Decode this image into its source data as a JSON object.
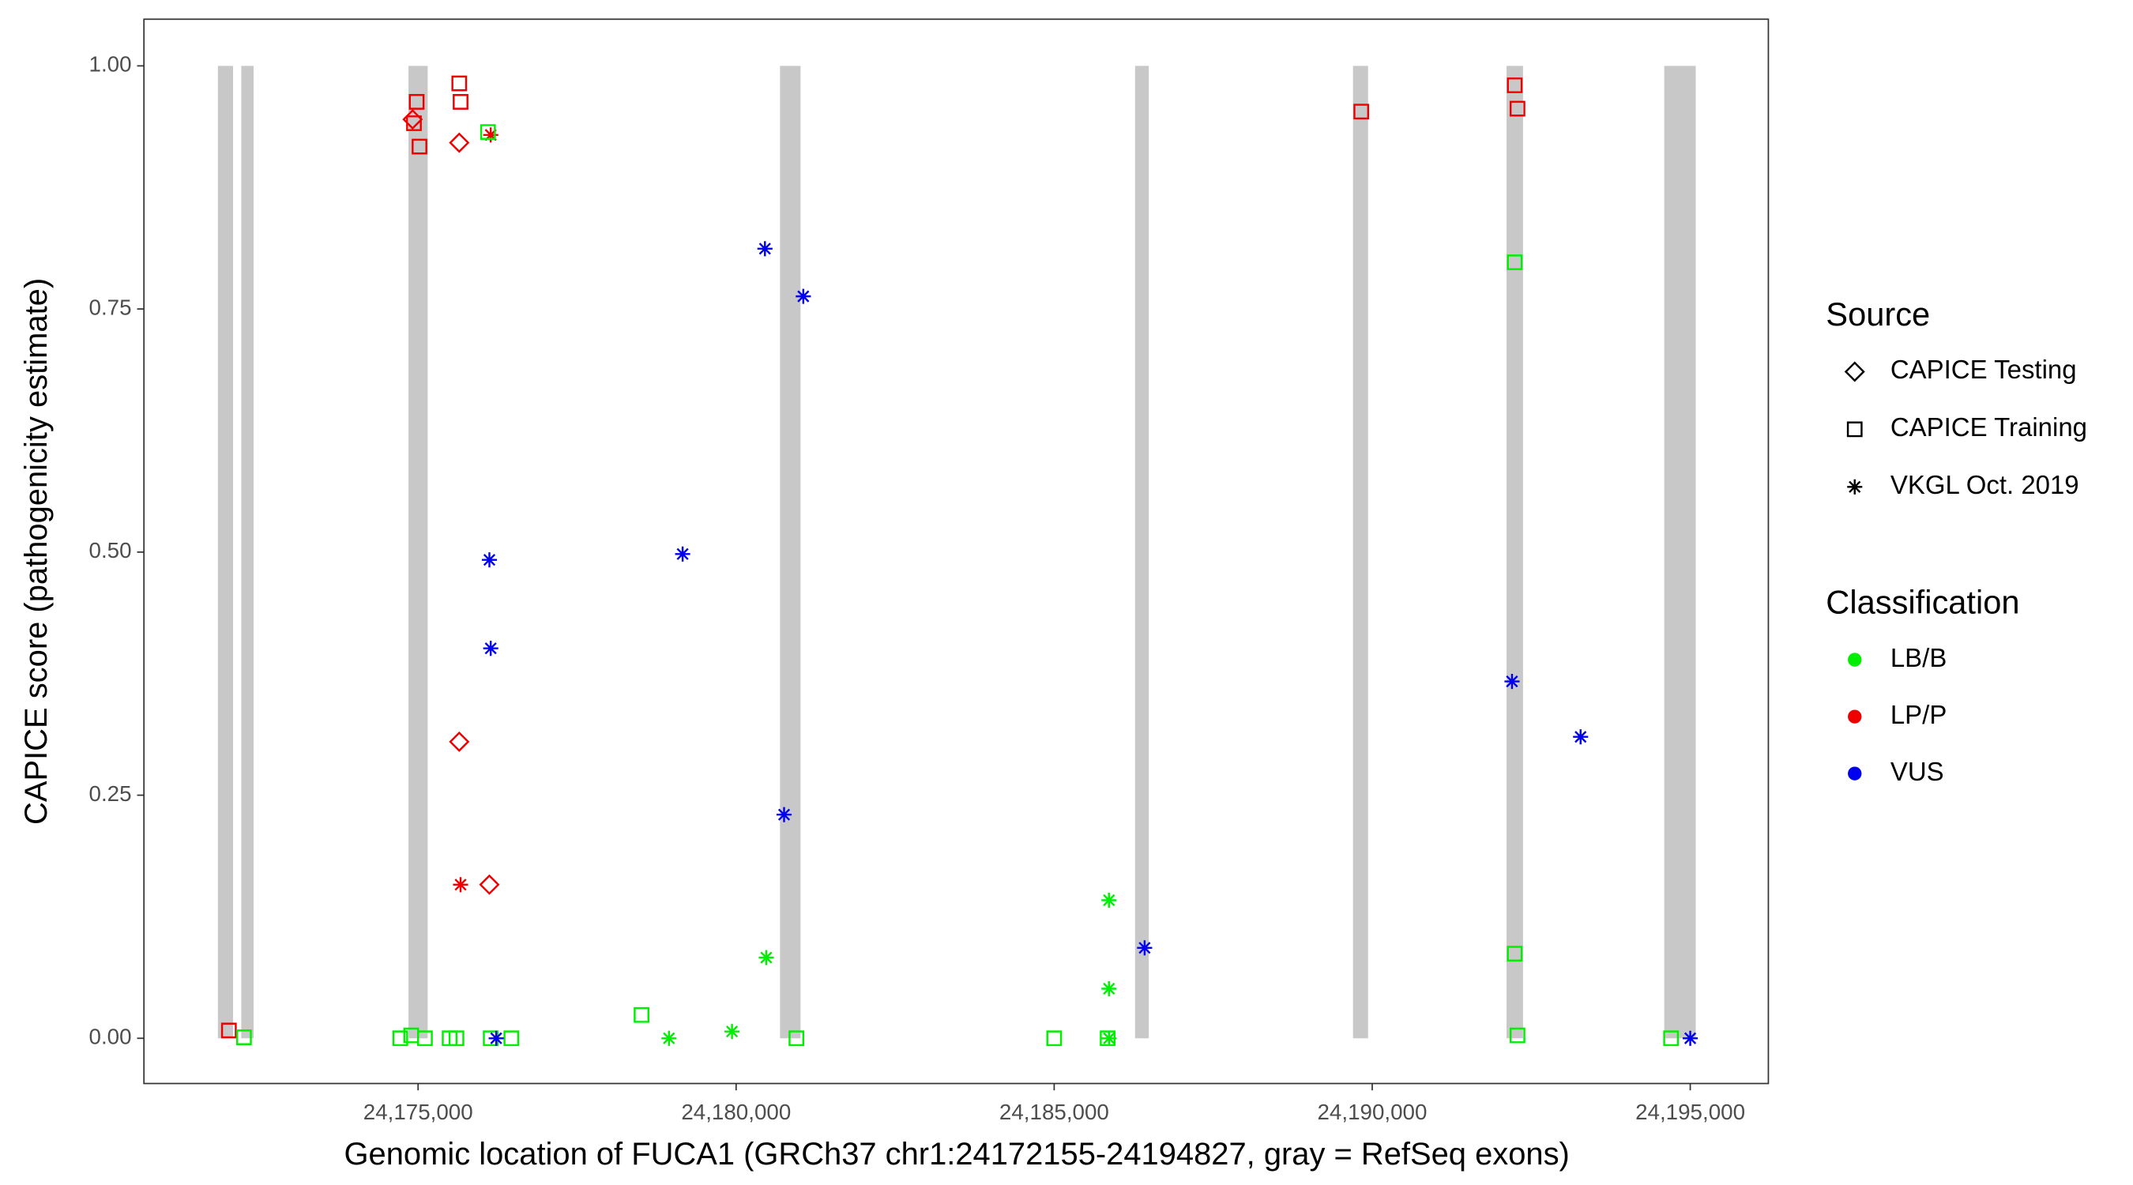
{
  "chart_data": {
    "type": "scatter",
    "xlabel": "Genomic location of FUCA1 (GRCh37 chr1:24172155-24194827, gray = RefSeq exons)",
    "ylabel": "CAPICE score (pathogenicity estimate)",
    "xlim": [
      24170690,
      24196228
    ],
    "ylim": [
      -0.0465,
      1.048
    ],
    "xticks": [
      {
        "value": 24175000,
        "label": "24,175,000"
      },
      {
        "value": 24180000,
        "label": "24,180,000"
      },
      {
        "value": 24185000,
        "label": "24,185,000"
      },
      {
        "value": 24190000,
        "label": "24,190,000"
      },
      {
        "value": 24195000,
        "label": "24,195,000"
      }
    ],
    "yticks": [
      {
        "value": 0,
        "label": "0.00"
      },
      {
        "value": 0.25,
        "label": "0.25"
      },
      {
        "value": 0.5,
        "label": "0.50"
      },
      {
        "value": 0.75,
        "label": "0.75"
      },
      {
        "value": 1,
        "label": "1.00"
      }
    ],
    "exon_color": "#c8c8c8",
    "exons": [
      [
        24171853,
        24172091
      ],
      [
        24172220,
        24172414
      ],
      [
        24174849,
        24175151
      ],
      [
        24180690,
        24181013
      ],
      [
        24186272,
        24186487
      ],
      [
        24189698,
        24189935
      ],
      [
        24192112,
        24192371
      ],
      [
        24194591,
        24195086
      ]
    ],
    "exon_range": [
      0,
      1
    ],
    "source_legend": {
      "title": "Source",
      "items": [
        {
          "name": "CAPICE Testing",
          "shape": "diamond"
        },
        {
          "name": "CAPICE Training",
          "shape": "square"
        },
        {
          "name": "VKGL Oct. 2019",
          "shape": "asterisk"
        }
      ]
    },
    "class_legend": {
      "title": "Classification",
      "items": [
        {
          "name": "LB/B",
          "color": "#00ee00"
        },
        {
          "name": "LP/P",
          "color": "#ee0000"
        },
        {
          "name": "VUS",
          "color": "#0000ee"
        }
      ]
    },
    "series": [
      {
        "source": "CAPICE Training",
        "classification": "LP/P",
        "x": [
          24172026,
          24174978,
          24174935,
          24175022,
          24175647,
          24175668,
          24189828,
          24192241,
          24192284
        ],
        "values": [
          0.008,
          0.963,
          0.941,
          0.917,
          0.982,
          0.963,
          0.953,
          0.98,
          0.956
        ]
      },
      {
        "source": "CAPICE Testing",
        "classification": "LP/P",
        "x": [
          24174914,
          24175647,
          24175647,
          24176121
        ],
        "values": [
          0.945,
          0.921,
          0.305,
          0.158
        ]
      },
      {
        "source": "VKGL Oct. 2019",
        "classification": "LP/P",
        "x": [
          24176142,
          24175668
        ],
        "values": [
          0.929,
          0.158
        ]
      },
      {
        "source": "CAPICE Training",
        "classification": "LB/B",
        "x": [
          24172263,
          24174720,
          24174892,
          24175108,
          24175496,
          24175603,
          24176099,
          24176142,
          24176466,
          24178513,
          24180948,
          24185000,
          24185841,
          24192241,
          24192241,
          24192284,
          24194698
        ],
        "values": [
          0.001,
          0,
          0.003,
          0,
          0,
          0,
          0.932,
          0,
          0,
          0.024,
          0,
          0,
          0,
          0.798,
          0.087,
          0.003,
          0
        ]
      },
      {
        "source": "VKGL Oct. 2019",
        "classification": "LB/B",
        "x": [
          24178944,
          24179935,
          24180474,
          24185862,
          24185862,
          24185862
        ],
        "values": [
          0,
          0.007,
          0.083,
          0.142,
          0.051,
          0
        ]
      },
      {
        "source": "VKGL Oct. 2019",
        "classification": "VUS",
        "x": [
          24180453,
          24181056,
          24176121,
          24179159,
          24176142,
          24180754,
          24186422,
          24192198,
          24193276,
          24195000,
          24176228
        ],
        "values": [
          0.812,
          0.763,
          0.492,
          0.498,
          0.401,
          0.23,
          0.093,
          0.367,
          0.31,
          0,
          0
        ]
      }
    ]
  }
}
